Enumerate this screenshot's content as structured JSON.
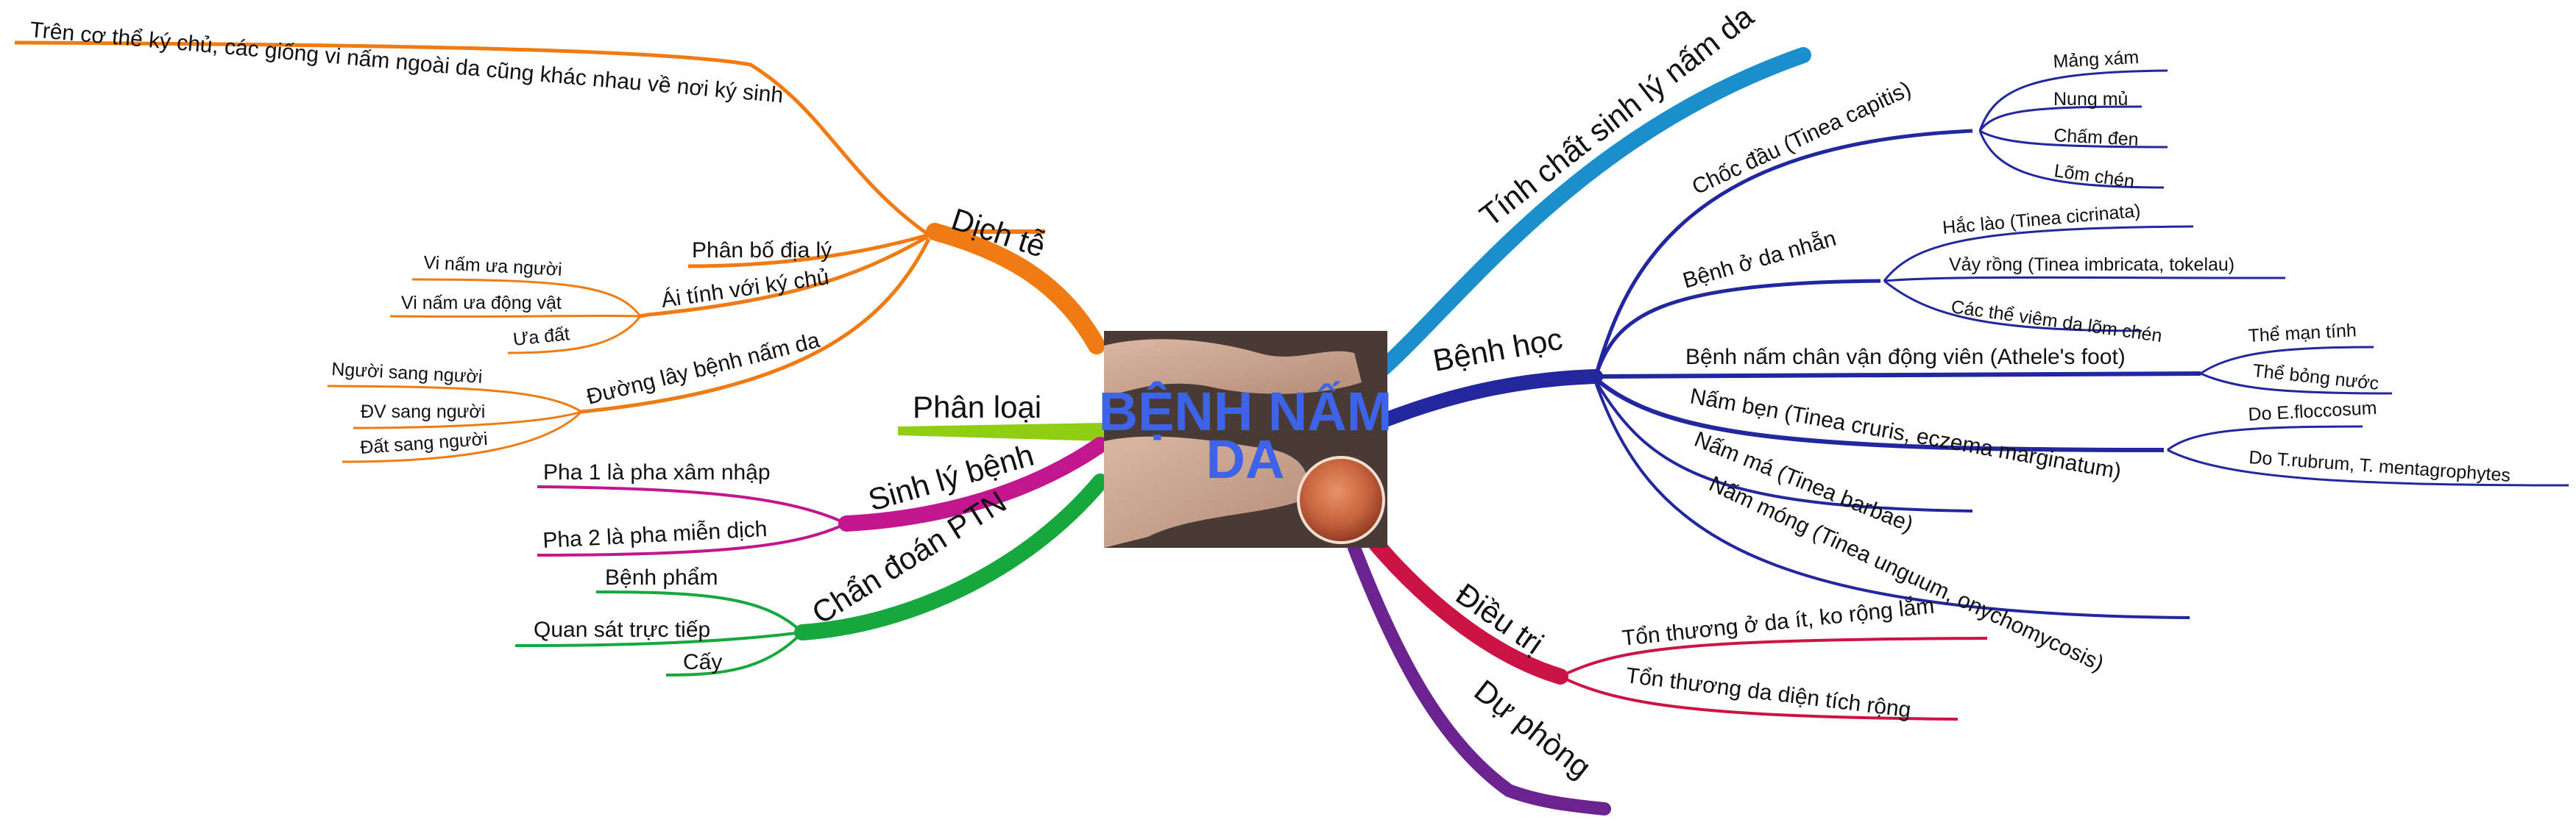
{
  "center": {
    "title_line1": "BỆNH NẤM",
    "title_line2": "DA"
  },
  "colors": {
    "orange": "#f07b12",
    "lime": "#8fce12",
    "magenta": "#c2168f",
    "green": "#16a83c",
    "cyan": "#1a8fcc",
    "navy": "#22279e",
    "crimson": "#cc1444",
    "purple": "#6b2391"
  },
  "branches": {
    "dich_te": {
      "label": "Dịch tễ",
      "note": "Trên cơ thể ký chủ, các giống vi nấm ngoài da cũng khác nhau về nơi ký sinh",
      "phan_bo": "Phân bố địa lý",
      "ai_tinh": "Ái tính với ký chủ",
      "ai_tinh_items": [
        "Vi nấm ưa người",
        "Vi nấm ưa động vật",
        "Ưa đất"
      ],
      "duong_lay": "Đường lây bệnh nấm da",
      "duong_lay_items": [
        "Người sang người",
        "ĐV sang người",
        "Đất sang người"
      ]
    },
    "phan_loai": {
      "label": "Phân loại"
    },
    "sinh_ly_benh": {
      "label": "Sinh lý bệnh",
      "items": [
        "Pha 1 là pha xâm nhập",
        "Pha 2 là pha miễn dịch"
      ]
    },
    "chan_doan": {
      "label": "Chẩn đoán PTN",
      "items": [
        "Bệnh phẩm",
        "Quan sát trực tiếp",
        "Cấy"
      ]
    },
    "tinh_chat": {
      "label": "Tính chất sinh lý nấm da"
    },
    "benh_hoc": {
      "label": "Bệnh học",
      "choc_dau": "Chốc đầu (Tinea capitis)",
      "choc_dau_items": [
        "Mảng xám",
        "Nung mủ",
        "Chấm đen",
        "Lõm chén"
      ],
      "da_nhan": "Bệnh ở da nhẵn",
      "da_nhan_items": [
        "Hắc lào (Tinea cicrinata)",
        "Vảy rồng (Tinea imbricata, tokelau)",
        "Các thể viêm da lõm chén"
      ],
      "chan_vdv": "Bệnh nấm chân vận động viên (Athele's foot)",
      "chan_vdv_items": [
        "Thể mạn tính",
        "Thể bỏng nước"
      ],
      "nam_ben": "Nấm bẹn (Tinea cruris, eczema marginatum)",
      "nam_ben_items": [
        "Do E.floccosum",
        "Do T.rubrum, T. mentagrophytes"
      ],
      "nam_ma": "Nấm má (Tinea barbae)",
      "nam_mong": "Nấm móng (Tinea unguum, onychomycosis)"
    },
    "dieu_tri": {
      "label": "Điều trị",
      "items": [
        "Tổn thương ở da ít, ko rộng lắm",
        "Tổn thương da diện tích rộng"
      ]
    },
    "du_phong": {
      "label": "Dự phòng"
    }
  }
}
